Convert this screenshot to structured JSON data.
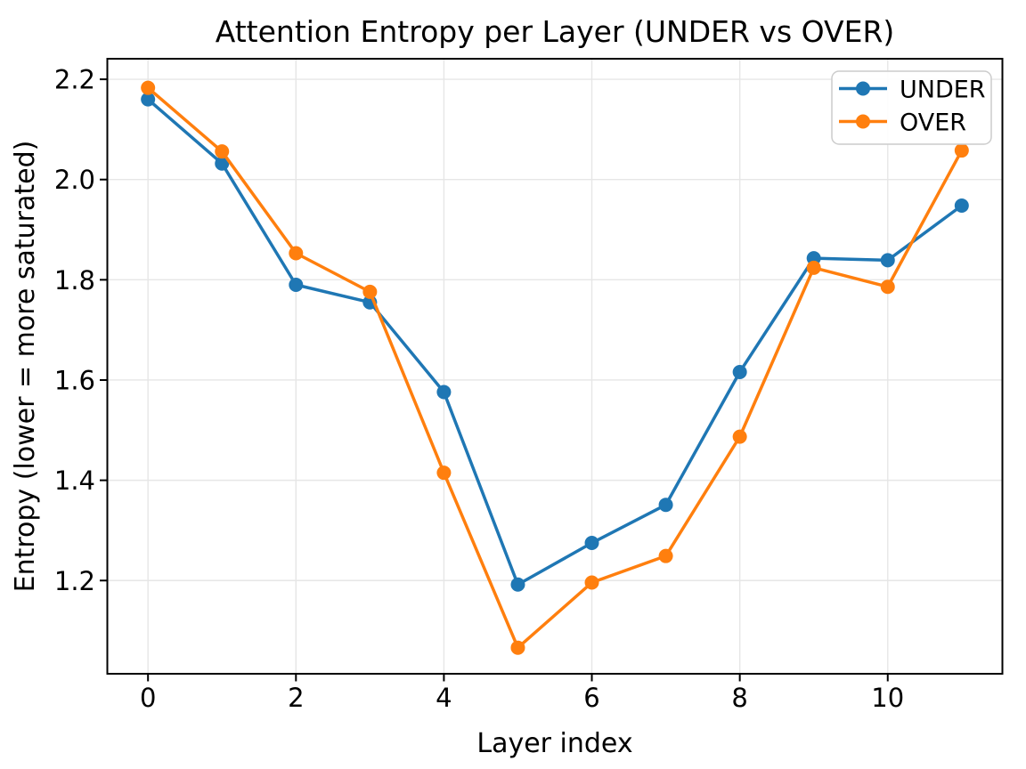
{
  "figure": {
    "background": "#ffffff"
  },
  "chart_data": {
    "type": "line",
    "title": "Attention Entropy per Layer (UNDER vs OVER)",
    "xlabel": "Layer index",
    "ylabel": "Entropy (lower = more saturated)",
    "x": [
      0,
      1,
      2,
      3,
      4,
      5,
      6,
      7,
      8,
      9,
      10,
      11
    ],
    "series": [
      {
        "name": "UNDER",
        "color": "#1f77b4",
        "values": [
          2.16,
          2.032,
          1.79,
          1.755,
          1.576,
          1.192,
          1.275,
          1.351,
          1.616,
          1.843,
          1.839,
          1.948
        ]
      },
      {
        "name": "OVER",
        "color": "#ff7f0e",
        "values": [
          2.183,
          2.056,
          1.853,
          1.776,
          1.415,
          1.066,
          1.196,
          1.249,
          1.487,
          1.824,
          1.786,
          2.058
        ]
      }
    ],
    "xticks": [
      0,
      2,
      4,
      6,
      8,
      10
    ],
    "yticks": [
      1.2,
      1.4,
      1.6,
      1.8,
      2.0,
      2.2
    ],
    "xlim": [
      -0.55,
      11.55
    ],
    "ylim": [
      1.014,
      2.241
    ],
    "grid": true,
    "grid_color": "#e6e6e6",
    "axis_color": "#000000",
    "marker": "o",
    "legend": {
      "position": "upper right",
      "entries": [
        "UNDER",
        "OVER"
      ]
    }
  }
}
